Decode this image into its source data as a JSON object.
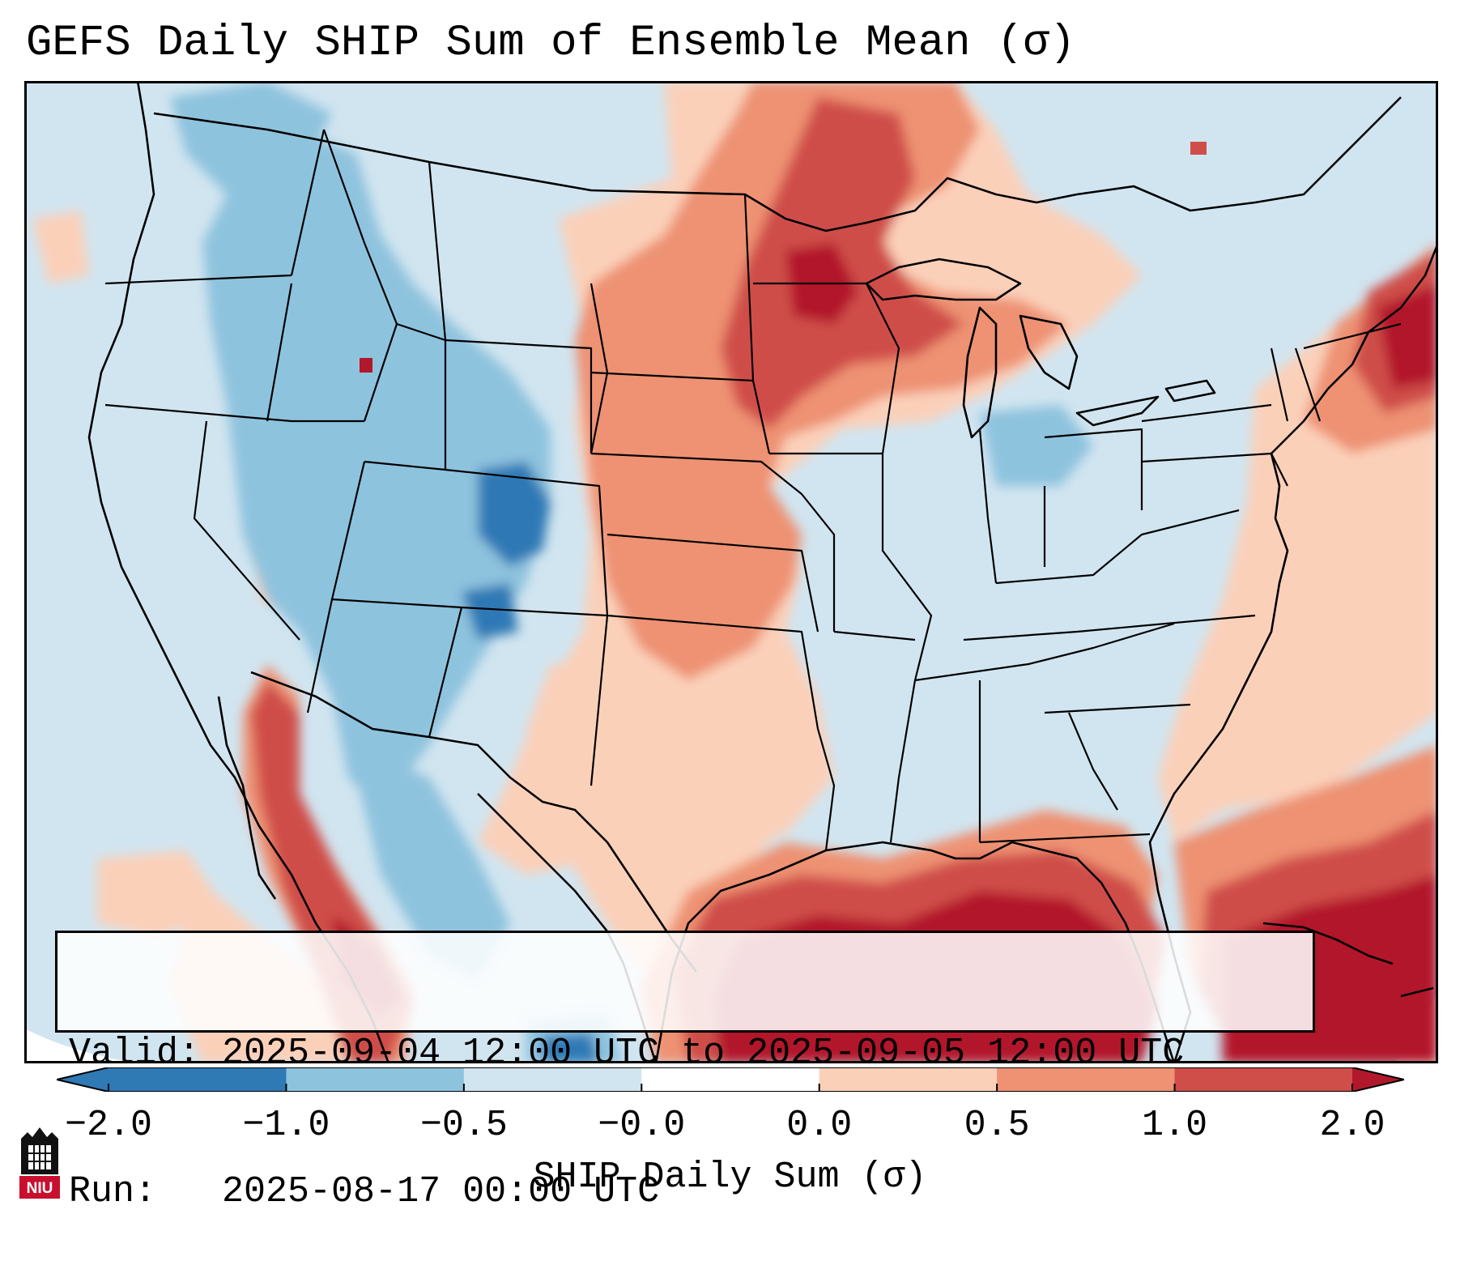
{
  "title": "GEFS Daily SHIP Sum of Ensemble Mean (σ)",
  "info": {
    "valid": "Valid: 2025-09-04 12:00 UTC to 2025-09-05 12:00 UTC",
    "run": "Run:   2025-08-17 00:00 UTC"
  },
  "colorbar": {
    "label": "SHIP Daily Sum (σ)",
    "ticks": [
      "−2.0",
      "−1.0",
      "−0.5",
      "−0.0",
      "0.0",
      "0.5",
      "1.0",
      "2.0"
    ],
    "colors": [
      "#2f79b5",
      "#8ec3de",
      "#d1e5f0",
      "#ffffff",
      "#fbd0b9",
      "#ee9273",
      "#cf4e4a",
      "#b2182b"
    ],
    "extend": "both"
  },
  "logo": {
    "text": "NIU"
  },
  "map": {
    "region": "Continental United States",
    "colors": {
      "ocean": "#d1e5f0",
      "strong_negative": "#2f79b5",
      "moderate_negative": "#8ec3de",
      "light_negative": "#d1e5f0",
      "light_positive": "#fbd0b9",
      "moderate_positive": "#ee9273",
      "strong_positive": "#cf4e4a",
      "extreme_positive": "#b2182b"
    }
  }
}
